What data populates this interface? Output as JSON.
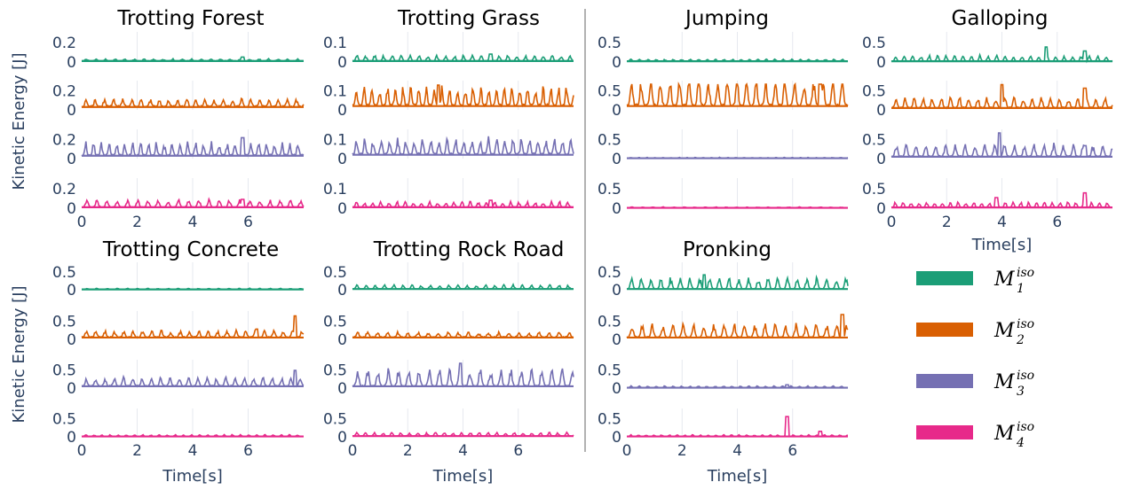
{
  "chart_data": {
    "type": "line",
    "y_axis_label": "Kinetic Energy [J]",
    "x_axis_label": "Time[s]",
    "x_range": [
      0,
      8
    ],
    "x_ticks": [
      0,
      2,
      4,
      6
    ],
    "grid": true,
    "legend": {
      "placement": "bottom-right",
      "entries": [
        {
          "symbol": "M",
          "sub": "1",
          "sup": "iso",
          "color": "#1b9e77"
        },
        {
          "symbol": "M",
          "sub": "2",
          "sup": "iso",
          "color": "#d95f02"
        },
        {
          "symbol": "M",
          "sub": "3",
          "sup": "iso",
          "color": "#7570b3"
        },
        {
          "symbol": "M",
          "sub": "4",
          "sup": "iso",
          "color": "#e7298a"
        }
      ]
    },
    "panels": [
      {
        "title": "Trotting Forest",
        "y_tick": "0.2",
        "y_tick_value": 0.2,
        "rows": [
          {
            "series": "M1",
            "baseline": 0.01,
            "amp": 0.02,
            "spikes": [
              [
                5.8,
                0.05
              ]
            ]
          },
          {
            "series": "M2",
            "baseline": 0.03,
            "amp": 0.08,
            "spikes": [
              [
                2.8,
                0.09
              ],
              [
                3.8,
                0.08
              ]
            ]
          },
          {
            "series": "M3",
            "baseline": 0.03,
            "amp": 0.15,
            "spikes": [
              [
                5.8,
                0.22
              ]
            ]
          },
          {
            "series": "M4",
            "baseline": 0.01,
            "amp": 0.08,
            "spikes": [
              [
                5.8,
                0.09
              ]
            ]
          }
        ]
      },
      {
        "title": "Trotting Grass",
        "y_tick": "0.1",
        "y_tick_value": 0.1,
        "rows": [
          {
            "series": "M1",
            "baseline": 0.005,
            "amp": 0.03,
            "spikes": [
              [
                5.0,
                0.04
              ]
            ]
          },
          {
            "series": "M2",
            "baseline": 0.02,
            "amp": 0.11,
            "spikes": [
              [
                3.1,
                0.13
              ]
            ]
          },
          {
            "series": "M3",
            "baseline": 0.02,
            "amp": 0.09,
            "spikes": []
          },
          {
            "series": "M4",
            "baseline": 0.005,
            "amp": 0.03,
            "spikes": [
              [
                5.0,
                0.04
              ]
            ]
          }
        ]
      },
      {
        "title": "Jumping",
        "y_tick": "0.5",
        "y_tick_value": 0.5,
        "rows": [
          {
            "series": "M1",
            "baseline": 0.02,
            "amp": 0.05,
            "spikes": []
          },
          {
            "series": "M2",
            "baseline": 0.1,
            "amp": 0.8,
            "spikes": [
              [
                7.0,
                1.0
              ]
            ]
          },
          {
            "series": "M3",
            "baseline": 0.01,
            "amp": 0.02,
            "spikes": []
          },
          {
            "series": "M4",
            "baseline": 0.01,
            "amp": 0.02,
            "spikes": []
          }
        ]
      },
      {
        "title": "Galloping",
        "y_tick": "0.5",
        "y_tick_value": 0.5,
        "rows": [
          {
            "series": "M1",
            "baseline": 0.02,
            "amp": 0.15,
            "spikes": [
              [
                5.6,
                0.38
              ],
              [
                7.0,
                0.28
              ]
            ]
          },
          {
            "series": "M2",
            "baseline": 0.05,
            "amp": 0.3,
            "spikes": [
              [
                4.0,
                0.66
              ],
              [
                7.0,
                0.57
              ]
            ]
          },
          {
            "series": "M3",
            "baseline": 0.05,
            "amp": 0.35,
            "spikes": [
              [
                3.9,
                0.69
              ],
              [
                7.0,
                0.34
              ]
            ]
          },
          {
            "series": "M4",
            "baseline": 0.02,
            "amp": 0.15,
            "spikes": [
              [
                3.8,
                0.27
              ],
              [
                7.0,
                0.39
              ]
            ]
          }
        ]
      },
      {
        "title": "Trotting Concrete",
        "y_tick": "0.5",
        "y_tick_value": 0.5,
        "rows": [
          {
            "series": "M1",
            "baseline": 0.01,
            "amp": 0.03,
            "spikes": []
          },
          {
            "series": "M2",
            "baseline": 0.05,
            "amp": 0.2,
            "spikes": [
              [
                6.3,
                0.28
              ],
              [
                7.7,
                0.64
              ]
            ]
          },
          {
            "series": "M3",
            "baseline": 0.05,
            "amp": 0.25,
            "spikes": [
              [
                7.7,
                0.48
              ]
            ]
          },
          {
            "series": "M4",
            "baseline": 0.01,
            "amp": 0.05,
            "spikes": []
          }
        ]
      },
      {
        "title": "Trotting Rock Road",
        "y_tick": "0.5",
        "y_tick_value": 0.5,
        "rows": [
          {
            "series": "M1",
            "baseline": 0.02,
            "amp": 0.12,
            "spikes": []
          },
          {
            "series": "M2",
            "baseline": 0.05,
            "amp": 0.15,
            "spikes": []
          },
          {
            "series": "M3",
            "baseline": 0.05,
            "amp": 0.5,
            "spikes": [
              [
                3.9,
                0.69
              ]
            ]
          },
          {
            "series": "M4",
            "baseline": 0.02,
            "amp": 0.1,
            "spikes": []
          }
        ]
      },
      {
        "title": "Pronking",
        "y_tick": "0.5",
        "y_tick_value": 0.5,
        "rows": [
          {
            "series": "M1",
            "baseline": 0.02,
            "amp": 0.35,
            "spikes": [
              [
                2.8,
                0.42
              ]
            ]
          },
          {
            "series": "M2",
            "baseline": 0.05,
            "amp": 0.4,
            "spikes": [
              [
                7.8,
                0.78
              ]
            ]
          },
          {
            "series": "M3",
            "baseline": 0.01,
            "amp": 0.05,
            "spikes": [
              [
                5.8,
                0.09
              ]
            ]
          },
          {
            "series": "M4",
            "baseline": 0.01,
            "amp": 0.05,
            "spikes": [
              [
                5.8,
                0.55
              ],
              [
                7.0,
                0.15
              ]
            ]
          }
        ]
      }
    ]
  }
}
